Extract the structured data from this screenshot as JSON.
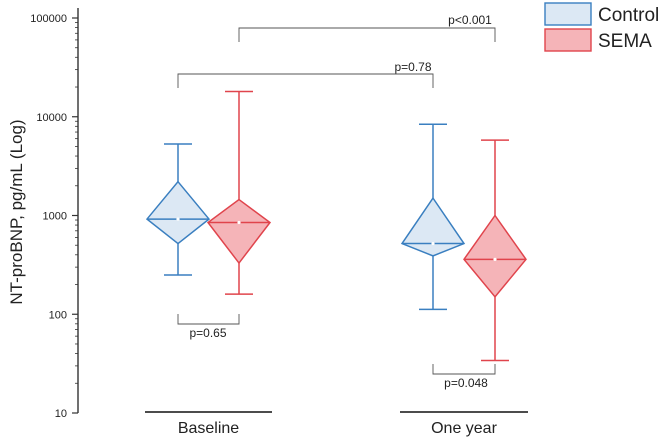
{
  "chart_data": {
    "type": "box",
    "ylabel": "NT-proBNP, pg/mL (Log)",
    "yscale": "log",
    "ylim": [
      10,
      100000
    ],
    "yticks": [
      {
        "value": 10,
        "label": "10"
      },
      {
        "value": 100,
        "label": "100"
      },
      {
        "value": 1000,
        "label": "1000"
      },
      {
        "value": 10000,
        "label": "10000"
      },
      {
        "value": 100000,
        "label": "100000"
      }
    ],
    "categories": [
      "Baseline",
      "One year"
    ],
    "legend_position": "top-right",
    "series": [
      {
        "name": "Control",
        "color": "#3a7fc0",
        "fill": "#dce8f4",
        "boxes": [
          {
            "category": "Baseline",
            "min": 250,
            "q1": 520,
            "median": 920,
            "q3": 2200,
            "max": 5300
          },
          {
            "category": "One year",
            "min": 112,
            "q1": 390,
            "median": 520,
            "q3": 1500,
            "max": 8400
          }
        ]
      },
      {
        "name": "SEMA",
        "color": "#e0444c",
        "fill": "#f5b4b8",
        "boxes": [
          {
            "category": "Baseline",
            "min": 160,
            "q1": 330,
            "median": 850,
            "q3": 1450,
            "max": 18000
          },
          {
            "category": "One year",
            "min": 34,
            "q1": 150,
            "median": 360,
            "q3": 1000,
            "max": 5800
          }
        ]
      }
    ],
    "annotations": [
      {
        "id": "top",
        "label": "p<0.001",
        "from": "Control Baseline",
        "to": "Control One year"
      },
      {
        "id": "mid",
        "label": "p=0.78",
        "from": "Control Baseline",
        "to": "Control One year"
      },
      {
        "id": "baseline",
        "label": "p=0.65",
        "from": "Control Baseline",
        "to": "SEMA Baseline"
      },
      {
        "id": "oneyear",
        "label": "p=0.048",
        "from": "Control One year",
        "to": "SEMA One year"
      }
    ]
  }
}
